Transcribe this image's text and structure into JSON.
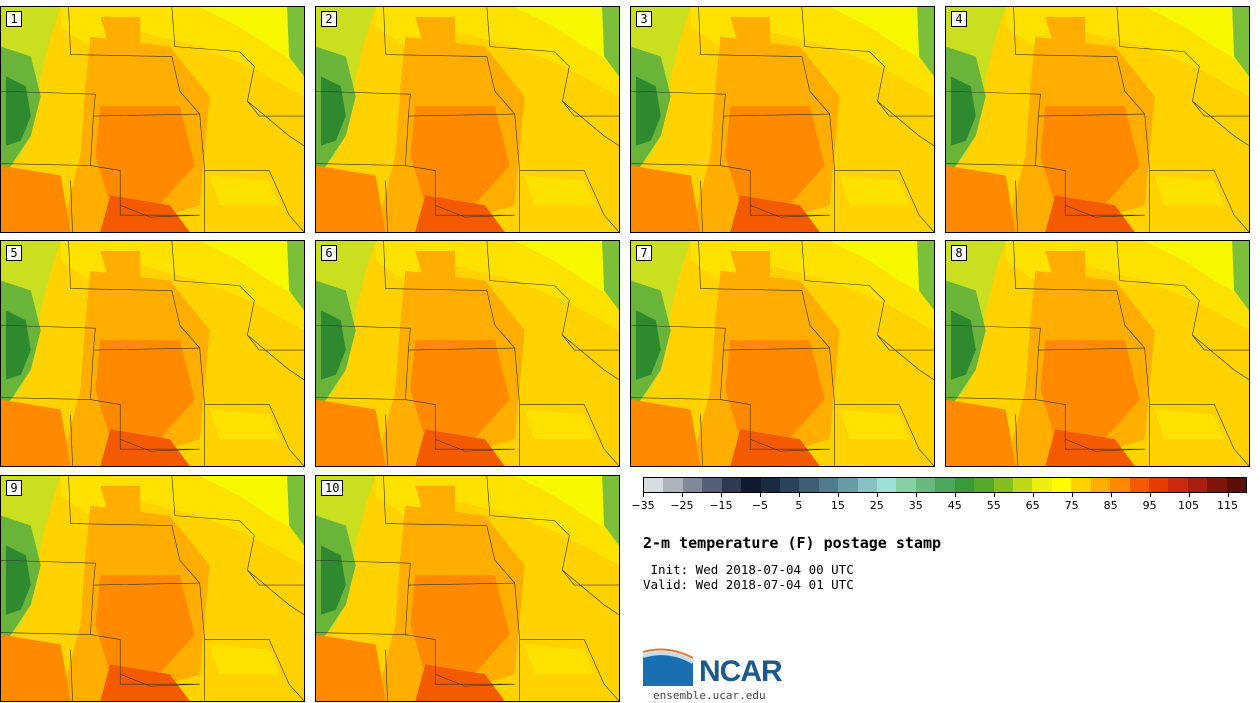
{
  "members": [
    "1",
    "2",
    "3",
    "4",
    "5",
    "6",
    "7",
    "8",
    "9",
    "10"
  ],
  "colorbar": {
    "colors": [
      "#d9dde2",
      "#aeb3bb",
      "#80889a",
      "#565f76",
      "#2f3a52",
      "#101a2d",
      "#1a2a3f",
      "#2b435a",
      "#3d5d75",
      "#507c8e",
      "#6a9ca6",
      "#88c1c1",
      "#9fe0d6",
      "#86cfa4",
      "#68b87f",
      "#4ca65d",
      "#3a9a3a",
      "#56a82a",
      "#86bd22",
      "#bfd81a",
      "#ecef10",
      "#fdfd00",
      "#ffd200",
      "#ffae00",
      "#ff8a00",
      "#f45a00",
      "#e23c00",
      "#c72a0c",
      "#a81e0e",
      "#7e160a",
      "#5a1008"
    ],
    "tick_labels": [
      "-35",
      "-25",
      "-15",
      "-5",
      "5",
      "15",
      "25",
      "35",
      "45",
      "55",
      "65",
      "75",
      "85",
      "95",
      "105",
      "115"
    ]
  },
  "title": "2-m temperature (F) postage stamp",
  "init": " Init: Wed 2018-07-04 00 UTC",
  "valid": "Valid: Wed 2018-07-04 01 UTC",
  "logo_text": "NCAR",
  "site": "ensemble.ucar.edu"
}
